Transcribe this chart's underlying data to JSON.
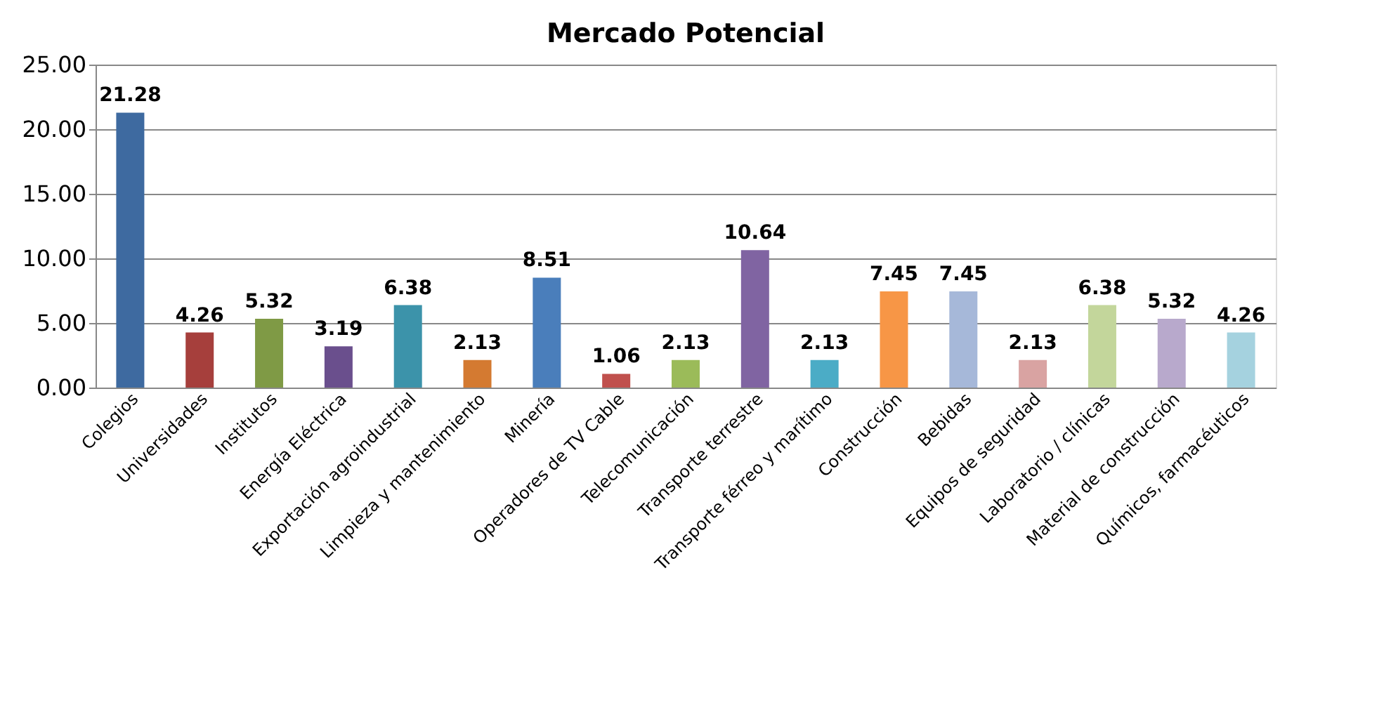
{
  "chart_data": {
    "type": "bar",
    "title": "Mercado Potencial",
    "categories": [
      "Colegios",
      "Universidades",
      "Institutos",
      "Energía Eléctrica",
      "Exportación agroindustrial",
      "Limpieza y mantenimiento",
      "Minería",
      "Operadores de TV Cable",
      "Telecomunicación",
      "Transporte terrestre",
      "Transporte férreo y marítimo",
      "Construcción",
      "Bebidas",
      "Equipos de seguridad",
      "Laboratorio / clínicas",
      "Material de construcción",
      "Químicos, farmacéuticos"
    ],
    "values": [
      21.28,
      4.26,
      5.32,
      3.19,
      6.38,
      2.13,
      8.51,
      1.06,
      2.13,
      10.64,
      2.13,
      7.45,
      7.45,
      2.13,
      6.38,
      5.32,
      4.26
    ],
    "colors": [
      "#3e6aa0",
      "#a63f3c",
      "#7f9a45",
      "#6a4f8d",
      "#3c93aa",
      "#d47a31",
      "#4a7ebb",
      "#c0504d",
      "#9bbb59",
      "#8064a2",
      "#4bacc6",
      "#f79646",
      "#a6b8d9",
      "#d9a3a2",
      "#c3d69b",
      "#b8a9cc",
      "#a5d2df"
    ],
    "ylim": [
      0,
      25
    ],
    "yticks": [
      {
        "value": 0,
        "label": "0.00"
      },
      {
        "value": 5,
        "label": "5.00"
      },
      {
        "value": 10,
        "label": "10.00"
      },
      {
        "value": 15,
        "label": "15.00"
      },
      {
        "value": 20,
        "label": "20.00"
      },
      {
        "value": 25,
        "label": "25.00"
      }
    ],
    "grid": "y",
    "data_labels": true
  }
}
